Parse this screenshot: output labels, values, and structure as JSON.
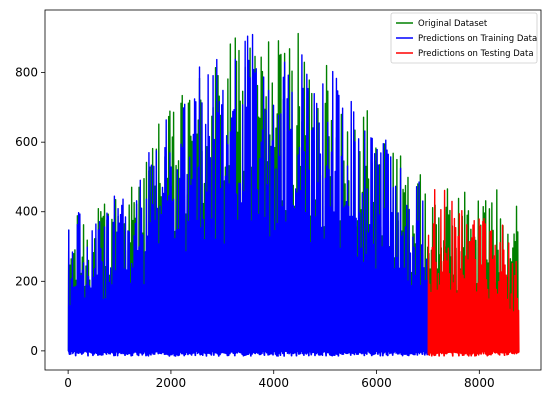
{
  "chart_data": {
    "type": "line",
    "title": "",
    "xlabel": "",
    "ylabel": "",
    "xlim": [
      -450,
      9200
    ],
    "ylim": [
      -55,
      980
    ],
    "xticks": [
      0,
      2000,
      4000,
      6000,
      8000
    ],
    "yticks": [
      0,
      200,
      400,
      600,
      800
    ],
    "xtick_labels": [
      "0",
      "2000",
      "4000",
      "6000",
      "8000"
    ],
    "ytick_labels": [
      "0",
      "200",
      "400",
      "600",
      "800"
    ],
    "legend": "top-right",
    "grid": false,
    "series": [
      {
        "name": "Original Dataset",
        "color": "#008000",
        "x_range": [
          0,
          8760
        ],
        "peak_envelope": [
          [
            0,
            360
          ],
          [
            300,
            420
          ],
          [
            600,
            420
          ],
          [
            1000,
            470
          ],
          [
            1400,
            520
          ],
          [
            1700,
            650
          ],
          [
            2000,
            700
          ],
          [
            2300,
            760
          ],
          [
            2600,
            860
          ],
          [
            3000,
            870
          ],
          [
            3200,
            900
          ],
          [
            3400,
            935
          ],
          [
            3700,
            920
          ],
          [
            4000,
            935
          ],
          [
            4300,
            930
          ],
          [
            4600,
            900
          ],
          [
            5000,
            840
          ],
          [
            5300,
            800
          ],
          [
            5600,
            780
          ],
          [
            5900,
            680
          ],
          [
            6200,
            620
          ],
          [
            6500,
            560
          ],
          [
            6800,
            520
          ],
          [
            7000,
            470
          ]
        ]
      },
      {
        "name": "Predictions on Training Data",
        "color": "#0000ff",
        "x_range": [
          0,
          7000
        ],
        "peak_envelope": [
          [
            0,
            365
          ],
          [
            300,
            420
          ],
          [
            600,
            410
          ],
          [
            1000,
            460
          ],
          [
            1400,
            510
          ],
          [
            1700,
            640
          ],
          [
            2000,
            690
          ],
          [
            2300,
            750
          ],
          [
            2600,
            840
          ],
          [
            3000,
            860
          ],
          [
            3300,
            910
          ],
          [
            3700,
            910
          ],
          [
            4000,
            900
          ],
          [
            4300,
            860
          ],
          [
            4600,
            860
          ],
          [
            5000,
            820
          ],
          [
            5300,
            790
          ],
          [
            5600,
            720
          ],
          [
            5900,
            660
          ],
          [
            6200,
            600
          ],
          [
            6500,
            540
          ],
          [
            6800,
            490
          ],
          [
            7000,
            440
          ]
        ]
      },
      {
        "name": "Predictions on Testing Data",
        "color": "#ff0000",
        "x_range": [
          7000,
          8760
        ],
        "peak_envelope": [
          [
            7000,
            455
          ],
          [
            7200,
            475
          ],
          [
            7500,
            460
          ],
          [
            7800,
            440
          ],
          [
            8000,
            400
          ],
          [
            8300,
            380
          ],
          [
            8500,
            370
          ],
          [
            8760,
            270
          ]
        ]
      }
    ]
  }
}
